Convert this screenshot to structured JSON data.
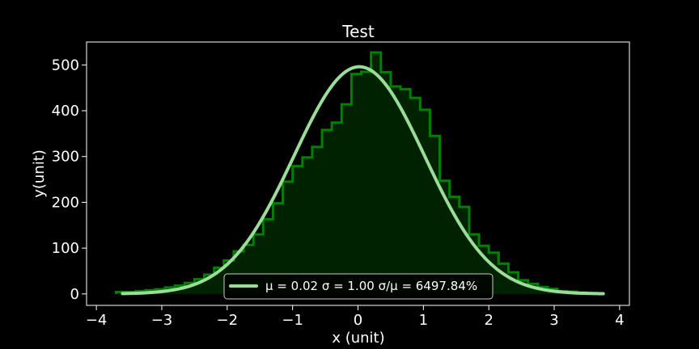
{
  "chart_data": {
    "type": "histogram",
    "title": "Test",
    "xlabel": "x (unit)",
    "ylabel": "y(unit)",
    "xlim": [
      -4.15,
      4.15
    ],
    "ylim": [
      -25,
      550
    ],
    "xticks": [
      -4,
      -3,
      -2,
      -1,
      0,
      1,
      2,
      3,
      4
    ],
    "xtick_labels": [
      "−4",
      "−3",
      "−2",
      "−1",
      "0",
      "1",
      "2",
      "3",
      "4"
    ],
    "yticks": [
      0,
      100,
      200,
      300,
      400,
      500
    ],
    "ytick_labels": [
      "0",
      "100",
      "200",
      "300",
      "400",
      "500"
    ],
    "grid": false,
    "legend_position": "lower-center",
    "histogram": {
      "bin_edges": [
        -3.7,
        -3.55,
        -3.4,
        -3.25,
        -3.1,
        -2.95,
        -2.8,
        -2.65,
        -2.5,
        -2.35,
        -2.2,
        -2.05,
        -1.9,
        -1.75,
        -1.6,
        -1.45,
        -1.3,
        -1.15,
        -1.0,
        -0.85,
        -0.7,
        -0.55,
        -0.4,
        -0.25,
        -0.1,
        0.05,
        0.2,
        0.35,
        0.5,
        0.65,
        0.8,
        0.95,
        1.1,
        1.25,
        1.4,
        1.55,
        1.7,
        1.85,
        2.0,
        2.15,
        2.3,
        2.45,
        2.6,
        2.75,
        2.9,
        3.05,
        3.2,
        3.35,
        3.5,
        3.65,
        3.75
      ],
      "counts": [
        4,
        4,
        6,
        8,
        10,
        14,
        18,
        24,
        32,
        42,
        57,
        73,
        93,
        107,
        130,
        163,
        198,
        245,
        279,
        298,
        321,
        358,
        374,
        414,
        480,
        485,
        527,
        484,
        453,
        447,
        428,
        402,
        345,
        247,
        212,
        190,
        130,
        105,
        90,
        66,
        47,
        30,
        22,
        15,
        11,
        6,
        5,
        3,
        2,
        1
      ],
      "color": "#008000",
      "fill_color": "#002200"
    },
    "fit_curve": {
      "mu": 0.02,
      "sigma": 1.0,
      "peak": 496,
      "x_range": [
        -3.6,
        3.75
      ],
      "color": "#99dd99"
    },
    "legend": {
      "label": "μ = 0.02  σ = 1.00  σ/μ = 6497.84%"
    }
  }
}
